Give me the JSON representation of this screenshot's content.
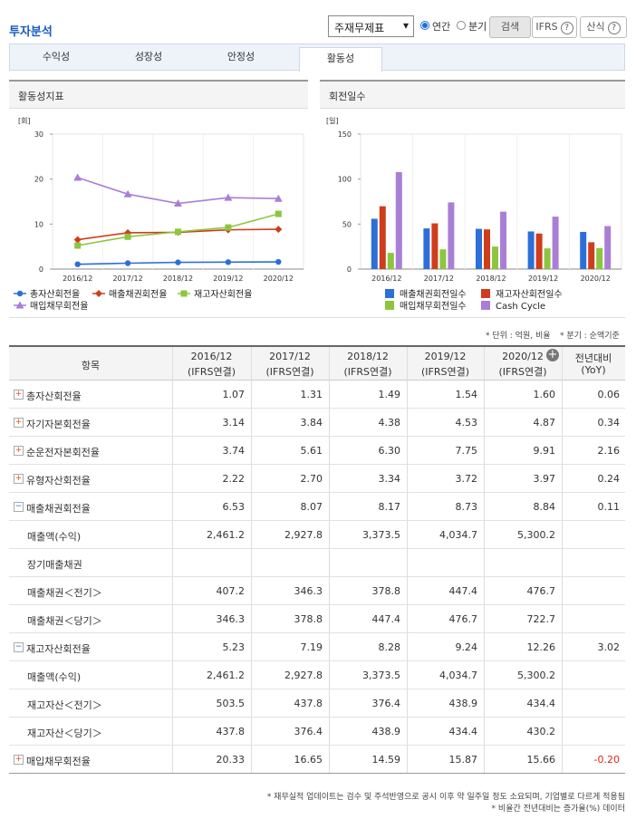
{
  "header": {
    "title": "투자분석",
    "statement_select": "주재무제표",
    "period_options": [
      "연간",
      "분기"
    ],
    "selected_period": "연간",
    "buttons": [
      "검색",
      "IFRS",
      "산식"
    ]
  },
  "tabs": {
    "items": [
      "수익성",
      "성장성",
      "안정성",
      "활동성"
    ],
    "active": "활동성"
  },
  "left_chart": {
    "type": "line",
    "title": "활동성지표",
    "unit": "[회]",
    "categories": [
      "2016/12",
      "2017/12",
      "2018/12",
      "2019/12",
      "2020/12"
    ],
    "ylim": [
      0,
      30
    ],
    "yticks": [
      0,
      10,
      20,
      30
    ],
    "series": [
      {
        "name": "총자산회전율",
        "color": "#2d6fd8",
        "marker": "circle",
        "values": [
          1.07,
          1.31,
          1.49,
          1.54,
          1.6
        ]
      },
      {
        "name": "매출채권회전율",
        "color": "#cf3d1c",
        "marker": "diamond",
        "values": [
          6.53,
          8.07,
          8.17,
          8.73,
          8.84
        ]
      },
      {
        "name": "재고자산회전율",
        "color": "#8cc63f",
        "marker": "square",
        "values": [
          5.23,
          7.19,
          8.28,
          9.24,
          12.26
        ]
      },
      {
        "name": "매입채무회전율",
        "color": "#a97fd6",
        "marker": "triangle",
        "values": [
          20.33,
          16.65,
          14.59,
          15.87,
          15.66
        ]
      }
    ]
  },
  "right_chart": {
    "type": "bar",
    "title": "회전일수",
    "unit": "[일]",
    "categories": [
      "2016/12",
      "2017/12",
      "2018/12",
      "2019/12",
      "2020/12"
    ],
    "ylim": [
      0,
      150
    ],
    "yticks": [
      0,
      50,
      100,
      150
    ],
    "series": [
      {
        "name": "매출채권회전일수",
        "color": "#2d6fd8",
        "values": [
          55.9,
          45.2,
          44.7,
          41.8,
          41.3
        ]
      },
      {
        "name": "재고자산회전일수",
        "color": "#cf3d1c",
        "values": [
          69.8,
          50.8,
          44.1,
          39.5,
          29.8
        ]
      },
      {
        "name": "매입채무회전일수",
        "color": "#8cc63f",
        "values": [
          18.0,
          21.9,
          25.0,
          23.0,
          23.3
        ]
      },
      {
        "name": "Cash Cycle",
        "color": "#a97fd6",
        "values": [
          107.7,
          74.1,
          63.8,
          58.3,
          47.8
        ]
      }
    ]
  },
  "notes": [
    "* 단위 : 억원, 비율",
    "* 분기 : 순액기준"
  ],
  "table": {
    "item_header": "항목",
    "columns": [
      {
        "period": "2016/12",
        "basis": "(IFRS연결)"
      },
      {
        "period": "2017/12",
        "basis": "(IFRS연결)"
      },
      {
        "period": "2018/12",
        "basis": "(IFRS연결)"
      },
      {
        "period": "2019/12",
        "basis": "(IFRS연결)"
      },
      {
        "period": "2020/12",
        "basis": "(IFRS연결)"
      }
    ],
    "yoy_header": {
      "period": "전년대비",
      "basis": "(YoY)"
    },
    "rows": [
      {
        "label": "총자산회전율",
        "values": [
          "1.07",
          "1.31",
          "1.49",
          "1.54",
          "1.60"
        ],
        "yoy": "0.06"
      },
      {
        "label": "자기자본회전율",
        "values": [
          "3.14",
          "3.84",
          "4.38",
          "4.53",
          "4.87"
        ],
        "yoy": "0.34"
      },
      {
        "label": "순운전자본회전율",
        "values": [
          "3.74",
          "5.61",
          "6.30",
          "7.75",
          "9.91"
        ],
        "yoy": "2.16"
      },
      {
        "label": "유형자산회전율",
        "values": [
          "2.22",
          "2.70",
          "3.34",
          "3.72",
          "3.97"
        ],
        "yoy": "0.24"
      },
      {
        "label": "매출채권회전율",
        "values": [
          "6.53",
          "8.07",
          "8.17",
          "8.73",
          "8.84"
        ],
        "yoy": "0.11",
        "children": [
          {
            "label": "매출액(수익)",
            "values": [
              "2,461.2",
              "2,927.8",
              "3,373.5",
              "4,034.7",
              "5,300.2"
            ]
          },
          {
            "label": "장기매출채권",
            "values": [
              null,
              null,
              null,
              null,
              null
            ]
          },
          {
            "label": "매출채권＜전기＞",
            "values": [
              "407.2",
              "346.3",
              "378.8",
              "447.4",
              "476.7"
            ]
          },
          {
            "label": "매출채권＜당기＞",
            "values": [
              "346.3",
              "378.8",
              "447.4",
              "476.7",
              "722.7"
            ]
          }
        ]
      },
      {
        "label": "재고자산회전율",
        "values": [
          "5.23",
          "7.19",
          "8.28",
          "9.24",
          "12.26"
        ],
        "yoy": "3.02",
        "children": [
          {
            "label": "매출액(수익)",
            "values": [
              "2,461.2",
              "2,927.8",
              "3,373.5",
              "4,034.7",
              "5,300.2"
            ]
          },
          {
            "label": "재고자산＜전기＞",
            "values": [
              "503.5",
              "437.8",
              "376.4",
              "438.9",
              "434.4"
            ]
          },
          {
            "label": "재고자산＜당기＞",
            "values": [
              "437.8",
              "376.4",
              "438.9",
              "434.4",
              "430.2"
            ]
          }
        ]
      },
      {
        "label": "매입채무회전율",
        "values": [
          "20.33",
          "16.65",
          "14.59",
          "15.87",
          "15.66"
        ],
        "yoy": "-0.20"
      }
    ]
  },
  "footnotes": [
    "* 재무실적 업데이트는 검수 및 주석반영으로 공시 이후 약 일주일 정도 소요되며, 기업별로 다르게 적용됨",
    "* 비율간 전년대비는 증가율(%) 데이터"
  ]
}
